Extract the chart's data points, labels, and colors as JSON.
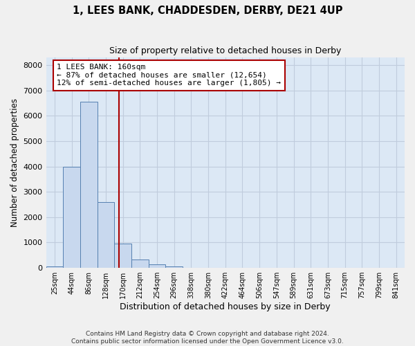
{
  "title1": "1, LEES BANK, CHADDESDEN, DERBY, DE21 4UP",
  "title2": "Size of property relative to detached houses in Derby",
  "xlabel": "Distribution of detached houses by size in Derby",
  "ylabel": "Number of detached properties",
  "bar_labels": [
    "25sqm",
    "44sqm",
    "86sqm",
    "128sqm",
    "170sqm",
    "212sqm",
    "254sqm",
    "296sqm",
    "338sqm",
    "380sqm",
    "422sqm",
    "464sqm",
    "506sqm",
    "547sqm",
    "589sqm",
    "631sqm",
    "673sqm",
    "715sqm",
    "757sqm",
    "799sqm",
    "841sqm"
  ],
  "bar_values": [
    50,
    4000,
    6550,
    2600,
    950,
    330,
    150,
    50,
    0,
    0,
    0,
    0,
    0,
    0,
    0,
    0,
    0,
    0,
    0,
    0,
    0
  ],
  "bar_color": "#c8d8ee",
  "bar_edge_color": "#5580b0",
  "vline_color": "#aa0000",
  "annotation_text": "1 LEES BANK: 160sqm\n← 87% of detached houses are smaller (12,654)\n12% of semi-detached houses are larger (1,805) →",
  "annotation_box_facecolor": "#ffffff",
  "annotation_box_edgecolor": "#aa0000",
  "ylim": [
    0,
    8300
  ],
  "yticks": [
    0,
    1000,
    2000,
    3000,
    4000,
    5000,
    6000,
    7000,
    8000
  ],
  "grid_color": "#c0ccdd",
  "axes_facecolor": "#dce8f5",
  "fig_facecolor": "#f0f0f0",
  "footer1": "Contains HM Land Registry data © Crown copyright and database right 2024.",
  "footer2": "Contains public sector information licensed under the Open Government Licence v3.0."
}
